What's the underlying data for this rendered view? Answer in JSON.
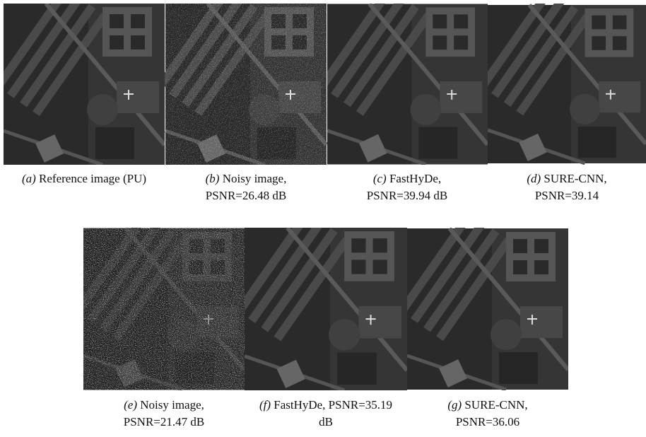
{
  "figures": [
    {
      "label": "(a)",
      "lines": [
        "Reference image (PU)"
      ]
    },
    {
      "label": "(b)",
      "lines": [
        "Noisy image,",
        "PSNR=26.48 dB"
      ]
    },
    {
      "label": "(c)",
      "lines": [
        "FastHyDe,",
        "PSNR=39.94 dB"
      ]
    },
    {
      "label": "(d)",
      "lines": [
        "SURE-CNN,",
        "PSNR=39.14"
      ]
    },
    {
      "label": "(e)",
      "lines": [
        "Noisy image,",
        "PSNR=21.47 dB"
      ]
    },
    {
      "label": "(f)",
      "lines": [
        "FastHyDe, PSNR=35.19",
        "dB"
      ]
    },
    {
      "label": "(g)",
      "lines": [
        "SURE-CNN,",
        "PSNR=36.06"
      ]
    }
  ]
}
